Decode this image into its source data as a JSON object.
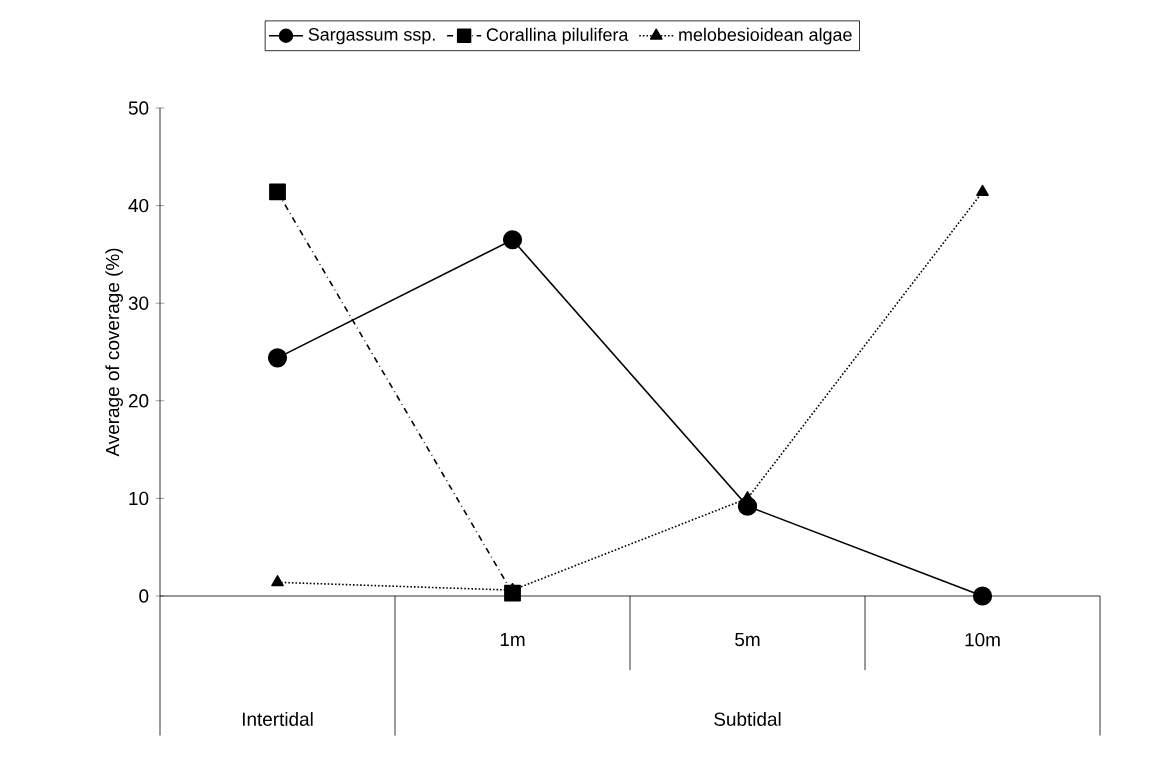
{
  "chart_data": {
    "type": "line",
    "categories": [
      null,
      "1m",
      "5m",
      "10m"
    ],
    "ylabel": "Average of coverage (%)",
    "ylim": [
      0,
      50
    ],
    "yticks": [
      0,
      10,
      20,
      30,
      40,
      50
    ],
    "legend": "top",
    "grid": false,
    "series": [
      {
        "name": "Sargassum ssp.",
        "color": "#000000",
        "marker": "circle",
        "line_style": "solid",
        "values": [
          24.4,
          36.5,
          9.2,
          0
        ]
      },
      {
        "name": "Corallina pilulifera",
        "color": "#000000",
        "marker": "square",
        "line_style": "dashdot",
        "values": [
          41.4,
          0.3,
          null,
          null
        ]
      },
      {
        "name": "melobesioidean algae",
        "color": "#000000",
        "marker": "triangle",
        "line_style": "dotted",
        "values": [
          1.4,
          0.6,
          10,
          41.4
        ]
      }
    ],
    "annotations": [
      "Intertidal",
      "Subtidal"
    ]
  }
}
